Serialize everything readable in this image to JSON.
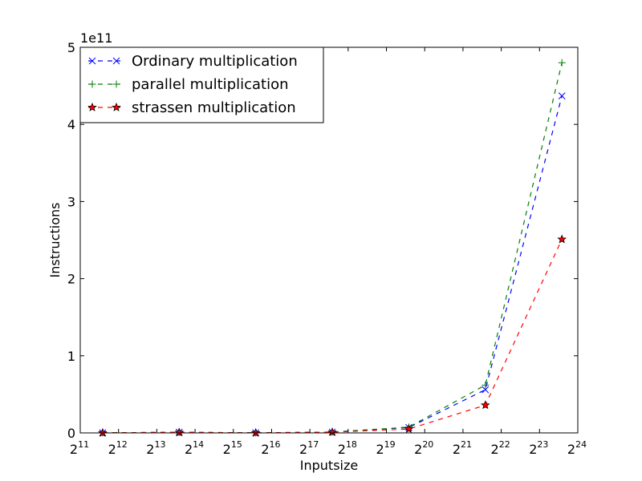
{
  "chart_data": {
    "type": "line",
    "xlabel": "Inputsize",
    "ylabel": "Instructions",
    "x_scale": "log2",
    "xlim": [
      2048,
      16777216
    ],
    "ylim": [
      0,
      500000000000
    ],
    "y_offset_text": "1e11",
    "x_ticks": [
      {
        "base": "2",
        "exp": "11",
        "value": 2048
      },
      {
        "base": "2",
        "exp": "12",
        "value": 4096
      },
      {
        "base": "2",
        "exp": "13",
        "value": 8192
      },
      {
        "base": "2",
        "exp": "14",
        "value": 16384
      },
      {
        "base": "2",
        "exp": "15",
        "value": 32768
      },
      {
        "base": "2",
        "exp": "16",
        "value": 65536
      },
      {
        "base": "2",
        "exp": "17",
        "value": 131072
      },
      {
        "base": "2",
        "exp": "18",
        "value": 262144
      },
      {
        "base": "2",
        "exp": "19",
        "value": 524288
      },
      {
        "base": "2",
        "exp": "20",
        "value": 1048576
      },
      {
        "base": "2",
        "exp": "21",
        "value": 2097152
      },
      {
        "base": "2",
        "exp": "22",
        "value": 4194304
      },
      {
        "base": "2",
        "exp": "23",
        "value": 8388608
      },
      {
        "base": "2",
        "exp": "24",
        "value": 16777216
      }
    ],
    "y_ticks": [
      {
        "label": "0",
        "value": 0
      },
      {
        "label": "1",
        "value": 100000000000
      },
      {
        "label": "2",
        "value": 200000000000
      },
      {
        "label": "3",
        "value": 300000000000
      },
      {
        "label": "4",
        "value": 400000000000
      },
      {
        "label": "5",
        "value": 500000000000
      }
    ],
    "x": [
      3072,
      12288,
      49152,
      196608,
      786432,
      3145728,
      12582912
    ],
    "series": [
      {
        "name": "Ordinary multiplication",
        "color": "#0000ff",
        "marker": "x",
        "values": [
          150000000,
          900000000,
          150000000,
          1100000000,
          7000000000,
          56000000000,
          437000000000
        ]
      },
      {
        "name": "parallel multiplication",
        "color": "#008000",
        "marker": "+",
        "values": [
          150000000,
          900000000,
          150000000,
          1100000000,
          7500000000,
          62000000000,
          480000000000
        ]
      },
      {
        "name": "strassen multiplication",
        "color": "#ff0000",
        "marker": "star",
        "values": [
          100000000,
          600000000,
          100000000,
          900000000,
          5000000000,
          36000000000,
          251000000000
        ]
      }
    ],
    "legend_position": "top-left",
    "grid": false
  }
}
